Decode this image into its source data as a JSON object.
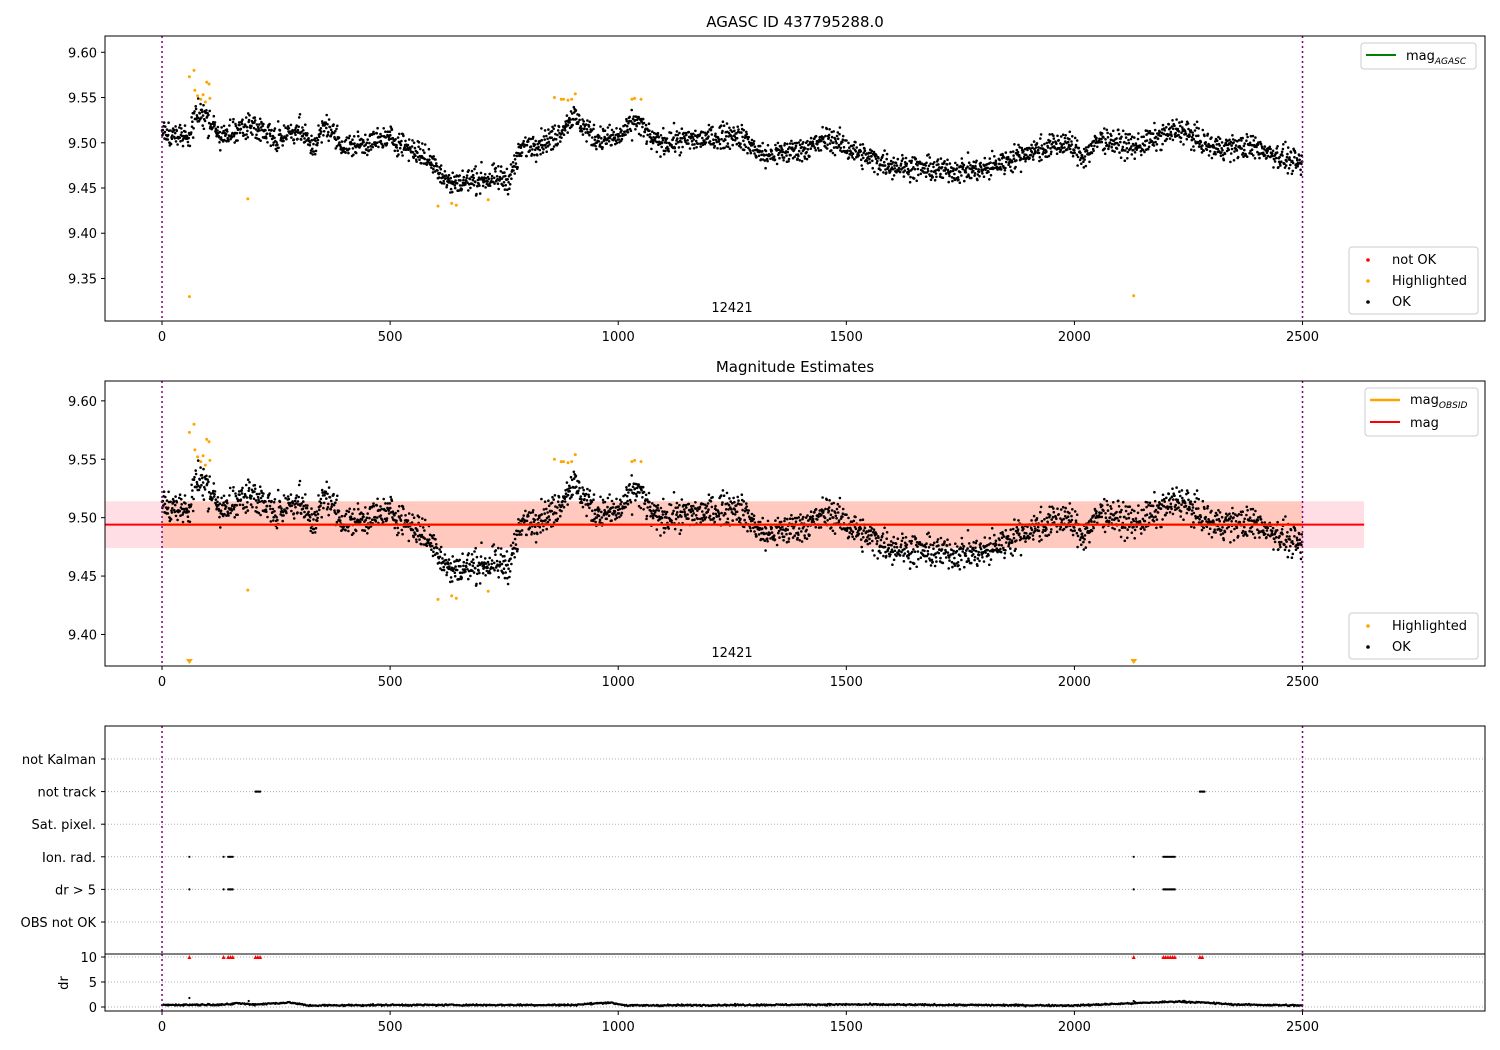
{
  "colors": {
    "ok": "#000000",
    "highlighted": "#ffa500",
    "not_ok": "#ff0000",
    "mag_agasc_line": "#008000",
    "mag_obsid_line": "#ffa500",
    "mag_line": "#ff0000",
    "band_fill": "#ffc0cb",
    "band_overlap": "#ffa07a",
    "boundary_line": "#800080",
    "grid_line": "#b0b0b0"
  },
  "chart_data": [
    {
      "type": "scatter",
      "title": "AGASC ID 437795288.0",
      "xlabel": "",
      "ylabel": "",
      "xlim": [
        -125,
        2900
      ],
      "ylim": [
        9.303,
        9.618
      ],
      "xticks": [
        0,
        500,
        1000,
        1500,
        2000,
        2500
      ],
      "xtick_labels": [
        "0",
        "500",
        "1000",
        "1500",
        "2000",
        "2500"
      ],
      "yticks": [
        9.35,
        9.4,
        9.45,
        9.5,
        9.55,
        9.6
      ],
      "ytick_labels": [
        "9.35",
        "9.40",
        "9.45",
        "9.50",
        "9.55",
        "9.60"
      ],
      "obsid_label": "12421",
      "obsid_label_x": 1250,
      "obsid_boundaries": [
        0,
        2500
      ],
      "line_legend": {
        "placement": "top-right",
        "entries": [
          {
            "label": "mag",
            "subscript": "AGASC",
            "color": "#008000"
          }
        ]
      },
      "marker_legend": {
        "placement": "bottom-right",
        "entries": [
          {
            "label": "not OK",
            "color": "#ff0000"
          },
          {
            "label": "Highlighted",
            "color": "#ffa500"
          },
          {
            "label": "OK",
            "color": "#000000"
          }
        ]
      },
      "series": [
        {
          "name": "OK",
          "color": "#000000",
          "segments": [
            [
              0,
              9.51
            ],
            [
              60,
              9.505
            ],
            [
              75,
              9.535
            ],
            [
              100,
              9.525
            ],
            [
              130,
              9.505
            ],
            [
              170,
              9.515
            ],
            [
              200,
              9.52
            ],
            [
              250,
              9.505
            ],
            [
              300,
              9.515
            ],
            [
              330,
              9.495
            ],
            [
              360,
              9.52
            ],
            [
              400,
              9.495
            ],
            [
              500,
              9.505
            ],
            [
              560,
              9.49
            ],
            [
              600,
              9.475
            ],
            [
              630,
              9.455
            ],
            [
              700,
              9.46
            ],
            [
              760,
              9.46
            ],
            [
              790,
              9.495
            ],
            [
              860,
              9.505
            ],
            [
              900,
              9.53
            ],
            [
              950,
              9.505
            ],
            [
              1000,
              9.505
            ],
            [
              1040,
              9.525
            ],
            [
              1080,
              9.5
            ],
            [
              1200,
              9.505
            ],
            [
              1260,
              9.51
            ],
            [
              1320,
              9.485
            ],
            [
              1420,
              9.495
            ],
            [
              1460,
              9.505
            ],
            [
              1540,
              9.485
            ],
            [
              1600,
              9.475
            ],
            [
              1700,
              9.47
            ],
            [
              1800,
              9.47
            ],
            [
              1900,
              9.49
            ],
            [
              1980,
              9.5
            ],
            [
              2020,
              9.485
            ],
            [
              2060,
              9.505
            ],
            [
              2130,
              9.495
            ],
            [
              2180,
              9.505
            ],
            [
              2230,
              9.515
            ],
            [
              2300,
              9.495
            ],
            [
              2400,
              9.495
            ],
            [
              2500,
              9.475
            ]
          ]
        },
        {
          "name": "Highlighted",
          "color": "#ffa500",
          "points": [
            [
              60,
              9.33
            ],
            [
              60,
              9.573
            ],
            [
              70,
              9.58
            ],
            [
              72,
              9.558
            ],
            [
              78,
              9.552
            ],
            [
              85,
              9.548
            ],
            [
              90,
              9.553
            ],
            [
              95,
              9.545
            ],
            [
              98,
              9.567
            ],
            [
              103,
              9.565
            ],
            [
              105,
              9.549
            ],
            [
              188,
              9.438
            ],
            [
              605,
              9.43
            ],
            [
              635,
              9.433
            ],
            [
              645,
              9.431
            ],
            [
              715,
              9.437
            ],
            [
              860,
              9.55
            ],
            [
              875,
              9.548
            ],
            [
              880,
              9.548
            ],
            [
              890,
              9.547
            ],
            [
              898,
              9.548
            ],
            [
              906,
              9.554
            ],
            [
              1030,
              9.548
            ],
            [
              1036,
              9.549
            ],
            [
              1050,
              9.548
            ],
            [
              2130,
              9.331
            ]
          ]
        }
      ]
    },
    {
      "type": "scatter",
      "title": "Magnitude Estimates",
      "xlabel": "",
      "ylabel": "",
      "xlim": [
        -125,
        2900
      ],
      "ylim": [
        9.373,
        9.617
      ],
      "xticks": [
        0,
        500,
        1000,
        1500,
        2000,
        2500
      ],
      "xtick_labels": [
        "0",
        "500",
        "1000",
        "1500",
        "2000",
        "2500"
      ],
      "yticks": [
        9.4,
        9.45,
        9.5,
        9.55,
        9.6
      ],
      "ytick_labels": [
        "9.40",
        "9.45",
        "9.50",
        "9.55",
        "9.60"
      ],
      "obsid_label": "12421",
      "obsid_label_x": 1250,
      "obsid_boundaries": [
        0,
        2500
      ],
      "mag_value": 9.494,
      "mag_obsid_value": 9.494,
      "band_mag": [
        9.474,
        9.514
      ],
      "band_obsid": [
        9.474,
        9.514
      ],
      "band_mag_xrange": [
        -125,
        2635
      ],
      "band_obsid_xrange": [
        0,
        2500
      ],
      "offscale_markers": [
        [
          60,
          "#ffa500"
        ],
        [
          2130,
          "#ffa500"
        ]
      ],
      "line_legend": {
        "placement": "top-right",
        "entries": [
          {
            "label": "mag",
            "subscript": "OBSID",
            "color": "#ffa500"
          },
          {
            "label": "mag",
            "subscript": "",
            "color": "#ff0000"
          }
        ]
      },
      "marker_legend": {
        "placement": "bottom-right",
        "entries": [
          {
            "label": "Highlighted",
            "color": "#ffa500"
          },
          {
            "label": "OK",
            "color": "#000000"
          }
        ]
      },
      "series": [
        {
          "name": "OK",
          "color": "#000000",
          "same_as_panel": 0
        },
        {
          "name": "Highlighted",
          "color": "#ffa500",
          "same_as_panel": 0,
          "exclude_below": 9.373
        }
      ]
    },
    {
      "type": "scatter",
      "title": "",
      "xlabel": "",
      "xlim": [
        -125,
        2900
      ],
      "xticks": [
        0,
        500,
        1000,
        1500,
        2000,
        2500
      ],
      "xtick_labels": [
        "0",
        "500",
        "1000",
        "1500",
        "2000",
        "2500"
      ],
      "obsid_boundaries": [
        0,
        2500
      ],
      "flag_rows": [
        "not Kalman",
        "not track",
        "Sat. pixel.",
        "Ion. rad.",
        "dr > 5",
        "OBS not OK"
      ],
      "flags": {
        "not track": [
          [
            205,
            215
          ],
          [
            2275,
            2285
          ]
        ],
        "Ion. rad.": [
          [
            60,
            60
          ],
          [
            135,
            135
          ],
          [
            145,
            155
          ],
          [
            2130,
            2130
          ],
          [
            2195,
            2220
          ]
        ],
        "dr > 5": [
          [
            60,
            60
          ],
          [
            135,
            135
          ],
          [
            145,
            155
          ],
          [
            2130,
            2130
          ],
          [
            2195,
            2220
          ]
        ]
      },
      "dr_panel": {
        "ylabel": "dr",
        "ylim": [
          -0.8,
          10.6
        ],
        "yticks": [
          0,
          5,
          10
        ],
        "ytick_labels": [
          "0",
          "5",
          "10"
        ],
        "clipped_markers_x": [
          60,
          135,
          145,
          150,
          155,
          205,
          210,
          215,
          2130,
          2195,
          2200,
          2205,
          2210,
          2215,
          2220,
          2275,
          2280
        ],
        "clipped_value": 10,
        "baseline": [
          [
            0,
            0.4
          ],
          [
            150,
            0.5
          ],
          [
            160,
            0.8
          ],
          [
            200,
            0.5
          ],
          [
            280,
            0.9
          ],
          [
            320,
            0.3
          ],
          [
            500,
            0.4
          ],
          [
            900,
            0.4
          ],
          [
            980,
            0.9
          ],
          [
            1020,
            0.3
          ],
          [
            1500,
            0.5
          ],
          [
            2000,
            0.3
          ],
          [
            2230,
            1.1
          ],
          [
            2300,
            0.8
          ],
          [
            2350,
            0.5
          ],
          [
            2500,
            0.3
          ]
        ],
        "extra_points": [
          [
            60,
            1.8
          ],
          [
            190,
            1.2
          ],
          [
            2130,
            1.2
          ]
        ]
      }
    }
  ]
}
